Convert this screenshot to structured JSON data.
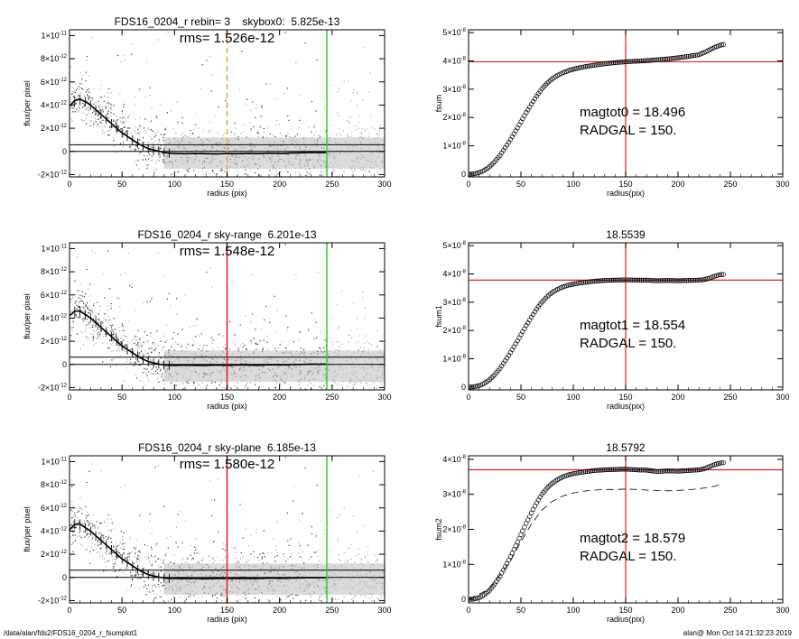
{
  "footer": {
    "left": "/data/alan/fds2/FDS16_0204_r_fsumplot1",
    "right": "alan@  Mon Oct 14 21:32:23 2019"
  },
  "colors": {
    "red": "#e02020",
    "green": "#2bd12b",
    "orange": "#f0a040",
    "scatter_dark": "#333333",
    "scatter_light": "#aaaaaa"
  },
  "chart_data": [
    {
      "type": "scatter",
      "panel": "profile-1",
      "title": "FDS16_0204_r rebin= 3    skybox0:  5.825e-13",
      "rms_label": "rms= 1.526e-12",
      "xlabel": "radius (pix)",
      "ylabel": "flux/per pixel",
      "xlim": [
        0,
        300
      ],
      "ylim": [
        -2.2e-12,
        1.05e-11
      ],
      "xticks": [
        "0",
        "50",
        "100",
        "150",
        "200",
        "250",
        "300"
      ],
      "yticks": [
        {
          "v": 1e-11,
          "m": "1×10",
          "e": "-11"
        },
        {
          "v": 8e-12,
          "m": "8×10",
          "e": "-12"
        },
        {
          "v": 6e-12,
          "m": "6×10",
          "e": "-12"
        },
        {
          "v": 4e-12,
          "m": "4×10",
          "e": "-12"
        },
        {
          "v": 2e-12,
          "m": "2×10",
          "e": "-12"
        },
        {
          "v": 0,
          "m": "0",
          "e": ""
        },
        {
          "v": -2e-12,
          "m": "-2×10",
          "e": "-12"
        }
      ],
      "vlines": [
        {
          "x": 150,
          "color": "#f0a040",
          "dash": true
        },
        {
          "x": 245,
          "color": "#2bd12b",
          "dash": false
        }
      ],
      "hlines": [
        0,
        5.8e-13
      ],
      "profile": {
        "x": [
          0,
          5,
          10,
          15,
          20,
          25,
          30,
          35,
          40,
          45,
          50,
          55,
          60,
          65,
          70,
          75,
          80,
          85,
          90,
          95,
          100,
          110,
          120,
          130,
          140,
          150,
          160,
          170,
          180,
          190,
          200,
          210,
          220,
          230,
          240,
          245
        ],
        "y": [
          3.9e-12,
          4.4e-12,
          4.5e-12,
          4.3e-12,
          4e-12,
          3.6e-12,
          3.2e-12,
          2.8e-12,
          2.4e-12,
          2e-12,
          1.6e-12,
          1.3e-12,
          1e-12,
          7e-13,
          4.5e-13,
          2.5e-13,
          1.2e-13,
          3e-14,
          -1e-13,
          -1.5e-13,
          -1.8e-13,
          -2e-13,
          -1.8e-13,
          -2e-13,
          -2.2e-13,
          -1.8e-13,
          -2e-13,
          -1.7e-13,
          -1.9e-13,
          -1.5e-13,
          -1.8e-13,
          -1.4e-13,
          -1.2e-13,
          -1e-13,
          -1.1e-13,
          -1e-13
        ]
      }
    },
    {
      "type": "line",
      "panel": "growth-1",
      "title": "",
      "xlabel": "radius(pix)",
      "ylabel": "fsum",
      "xlim": [
        0,
        300
      ],
      "ylim": [
        -1e-09,
        5.1e-08
      ],
      "xticks": [
        "0",
        "50",
        "100",
        "150",
        "200",
        "250",
        "300"
      ],
      "yticks": [
        {
          "v": 5e-08,
          "m": "5×10",
          "e": "-8"
        },
        {
          "v": 4e-08,
          "m": "4×10",
          "e": "-8"
        },
        {
          "v": 3e-08,
          "m": "3×10",
          "e": "-8"
        },
        {
          "v": 2e-08,
          "m": "2×10",
          "e": "-8"
        },
        {
          "v": 1e-08,
          "m": "1×10",
          "e": "-8"
        },
        {
          "v": 0,
          "m": "0",
          "e": ""
        }
      ],
      "vline": 150,
      "hline": 3.97e-08,
      "magtot_label": "magtot0 =  18.496",
      "radgal_label": "RADGAL =    150.",
      "growth_x": [
        0,
        5,
        10,
        15,
        20,
        25,
        30,
        35,
        40,
        45,
        50,
        55,
        60,
        65,
        70,
        75,
        80,
        85,
        90,
        95,
        100,
        110,
        120,
        130,
        140,
        150,
        160,
        170,
        180,
        190,
        200,
        210,
        220,
        225,
        230,
        235,
        240,
        245
      ],
      "growth_y": [
        0,
        1e-10,
        5e-10,
        1.3e-09,
        2.6e-09,
        4.4e-09,
        6.6e-09,
        9.3e-09,
        1.22e-08,
        1.53e-08,
        1.85e-08,
        2.17e-08,
        2.47e-08,
        2.76e-08,
        3.01e-08,
        3.21e-08,
        3.37e-08,
        3.49e-08,
        3.58e-08,
        3.65e-08,
        3.71e-08,
        3.79e-08,
        3.85e-08,
        3.9e-08,
        3.94e-08,
        3.97e-08,
        3.99e-08,
        4.01e-08,
        4.04e-08,
        4.07e-08,
        4.11e-08,
        4.16e-08,
        4.22e-08,
        4.3e-08,
        4.39e-08,
        4.48e-08,
        4.55e-08,
        4.6e-08
      ],
      "dashed_x": [],
      "dashed_y": []
    },
    {
      "type": "scatter",
      "panel": "profile-2",
      "title": "FDS16_0204_r sky-range  6.201e-13",
      "rms_label": "rms= 1.548e-12",
      "xlabel": "radius (pix)",
      "ylabel": "flux/per pixel",
      "xlim": [
        0,
        300
      ],
      "ylim": [
        -2.2e-12,
        1.05e-11
      ],
      "xticks": [
        "0",
        "50",
        "100",
        "150",
        "200",
        "250",
        "300"
      ],
      "yticks": [
        {
          "v": 1e-11,
          "m": "1×10",
          "e": "-11"
        },
        {
          "v": 8e-12,
          "m": "8×10",
          "e": "-12"
        },
        {
          "v": 6e-12,
          "m": "6×10",
          "e": "-12"
        },
        {
          "v": 4e-12,
          "m": "4×10",
          "e": "-12"
        },
        {
          "v": 2e-12,
          "m": "2×10",
          "e": "-12"
        },
        {
          "v": 0,
          "m": "0",
          "e": ""
        },
        {
          "v": -2e-12,
          "m": "-2×10",
          "e": "-12"
        }
      ],
      "vlines": [
        {
          "x": 150,
          "color": "#e02020",
          "dash": false
        },
        {
          "x": 245,
          "color": "#2bd12b",
          "dash": false
        }
      ],
      "hlines": [
        0,
        6.2e-13
      ],
      "profile": {
        "x": [
          0,
          5,
          10,
          15,
          20,
          25,
          30,
          35,
          40,
          45,
          50,
          55,
          60,
          65,
          70,
          75,
          80,
          85,
          90,
          95,
          100,
          110,
          120,
          130,
          140,
          150,
          160,
          170,
          180,
          190,
          200,
          210,
          220,
          230,
          240,
          245
        ],
        "y": [
          4.2e-12,
          4.6e-12,
          4.6e-12,
          4.3e-12,
          4e-12,
          3.6e-12,
          3.2e-12,
          2.8e-12,
          2.4e-12,
          2e-12,
          1.6e-12,
          1.3e-12,
          1e-12,
          7e-13,
          4.5e-13,
          2.5e-13,
          1.2e-13,
          3e-14,
          -5e-14,
          -8e-14,
          -1e-13,
          -5e-14,
          -8e-14,
          -1e-13,
          -5e-14,
          -8e-14,
          -6e-14,
          -5e-14,
          -8e-14,
          -3e-14,
          -5e-14,
          -2e-14,
          0,
          3e-14,
          2e-14,
          3e-14
        ]
      }
    },
    {
      "type": "line",
      "panel": "growth-2",
      "title": "18.5539",
      "xlabel": "radius(pix)",
      "ylabel": "fsum1",
      "xlim": [
        0,
        300
      ],
      "ylim": [
        -1e-09,
        5.1e-08
      ],
      "xticks": [
        "0",
        "50",
        "100",
        "150",
        "200",
        "250",
        "300"
      ],
      "yticks": [
        {
          "v": 5e-08,
          "m": "5×10",
          "e": "-8"
        },
        {
          "v": 4e-08,
          "m": "4×10",
          "e": "-8"
        },
        {
          "v": 3e-08,
          "m": "3×10",
          "e": "-8"
        },
        {
          "v": 2e-08,
          "m": "2×10",
          "e": "-8"
        },
        {
          "v": 1e-08,
          "m": "1×10",
          "e": "-8"
        },
        {
          "v": 0,
          "m": "0",
          "e": ""
        }
      ],
      "vline": 150,
      "hline": 3.78e-08,
      "magtot_label": "magtot1 =  18.554",
      "radgal_label": "RADGAL =    150.",
      "growth_x": [
        0,
        5,
        10,
        15,
        20,
        25,
        30,
        35,
        40,
        45,
        50,
        55,
        60,
        65,
        70,
        75,
        80,
        85,
        90,
        95,
        100,
        110,
        120,
        130,
        140,
        150,
        160,
        170,
        180,
        190,
        200,
        210,
        220,
        225,
        230,
        235,
        240,
        245
      ],
      "growth_y": [
        0,
        1e-10,
        5e-10,
        1.3e-09,
        2.6e-09,
        4.4e-09,
        6.6e-09,
        9.3e-09,
        1.22e-08,
        1.53e-08,
        1.85e-08,
        2.17e-08,
        2.47e-08,
        2.76e-08,
        3e-08,
        3.2e-08,
        3.35e-08,
        3.46e-08,
        3.54e-08,
        3.6e-08,
        3.64e-08,
        3.7e-08,
        3.74e-08,
        3.77e-08,
        3.78e-08,
        3.79e-08,
        3.78e-08,
        3.78e-08,
        3.76e-08,
        3.77e-08,
        3.76e-08,
        3.77e-08,
        3.78e-08,
        3.8e-08,
        3.85e-08,
        3.92e-08,
        3.97e-08,
        3.99e-08
      ],
      "dashed_x": [],
      "dashed_y": []
    },
    {
      "type": "scatter",
      "panel": "profile-3",
      "title": "FDS16_0204_r sky-plane  6.185e-13",
      "rms_label": "rms= 1.580e-12",
      "xlabel": "radius (pix)",
      "ylabel": "flux/per pixel",
      "xlim": [
        0,
        300
      ],
      "ylim": [
        -2.2e-12,
        1.05e-11
      ],
      "xticks": [
        "0",
        "50",
        "100",
        "150",
        "200",
        "250",
        "300"
      ],
      "yticks": [
        {
          "v": 1e-11,
          "m": "1×10",
          "e": "-11"
        },
        {
          "v": 8e-12,
          "m": "8×10",
          "e": "-12"
        },
        {
          "v": 6e-12,
          "m": "6×10",
          "e": "-12"
        },
        {
          "v": 4e-12,
          "m": "4×10",
          "e": "-12"
        },
        {
          "v": 2e-12,
          "m": "2×10",
          "e": "-12"
        },
        {
          "v": 0,
          "m": "0",
          "e": ""
        },
        {
          "v": -2e-12,
          "m": "-2×10",
          "e": "-12"
        }
      ],
      "vlines": [
        {
          "x": 150,
          "color": "#e02020",
          "dash": false
        },
        {
          "x": 245,
          "color": "#2bd12b",
          "dash": false
        }
      ],
      "hlines": [
        0,
        6.2e-13
      ],
      "profile": {
        "x": [
          0,
          5,
          10,
          15,
          20,
          25,
          30,
          35,
          40,
          45,
          50,
          55,
          60,
          65,
          70,
          75,
          80,
          85,
          90,
          95,
          100,
          110,
          120,
          130,
          140,
          150,
          160,
          170,
          180,
          190,
          200,
          210,
          220,
          230,
          240,
          245
        ],
        "y": [
          4.1e-12,
          4.6e-12,
          4.6e-12,
          4.3e-12,
          4e-12,
          3.6e-12,
          3.2e-12,
          2.8e-12,
          2.4e-12,
          2e-12,
          1.6e-12,
          1.3e-12,
          1e-12,
          7e-13,
          4.5e-13,
          2.5e-13,
          1.2e-13,
          3e-14,
          -5e-14,
          -1e-13,
          -1e-13,
          -8e-14,
          -1e-13,
          -1.2e-13,
          -8e-14,
          -1e-13,
          -9e-14,
          -8e-14,
          -1e-13,
          -6e-14,
          -8e-14,
          -5e-14,
          -4e-14,
          -2e-14,
          -3e-14,
          -2e-14
        ]
      }
    },
    {
      "type": "line",
      "panel": "growth-3",
      "title": "18.5792",
      "xlabel": "radius(pix)",
      "ylabel": "fsum2",
      "xlim": [
        0,
        300
      ],
      "ylim": [
        -1e-09,
        4.1e-08
      ],
      "xticks": [
        "0",
        "50",
        "100",
        "150",
        "200",
        "250",
        "300"
      ],
      "yticks": [
        {
          "v": 4e-08,
          "m": "4×10",
          "e": "-8"
        },
        {
          "v": 3e-08,
          "m": "3×10",
          "e": "-8"
        },
        {
          "v": 2e-08,
          "m": "2×10",
          "e": "-8"
        },
        {
          "v": 1e-08,
          "m": "1×10",
          "e": "-8"
        },
        {
          "v": 0,
          "m": "0",
          "e": ""
        }
      ],
      "vline": 150,
      "hline": 3.7e-08,
      "magtot_label": "magtot2 =  18.579",
      "radgal_label": "RADGAL =    150.",
      "growth_x": [
        0,
        5,
        10,
        15,
        20,
        25,
        30,
        35,
        40,
        45,
        50,
        55,
        60,
        65,
        70,
        75,
        80,
        85,
        90,
        95,
        100,
        110,
        120,
        130,
        140,
        150,
        160,
        170,
        180,
        190,
        200,
        210,
        220,
        225,
        230,
        235,
        240,
        245
      ],
      "growth_y": [
        0,
        1e-10,
        5e-10,
        1.3e-09,
        2.6e-09,
        4.4e-09,
        6.6e-09,
        9.3e-09,
        1.22e-08,
        1.53e-08,
        1.85e-08,
        2.17e-08,
        2.47e-08,
        2.76e-08,
        3e-08,
        3.18e-08,
        3.32e-08,
        3.42e-08,
        3.5e-08,
        3.55e-08,
        3.59e-08,
        3.64e-08,
        3.68e-08,
        3.7e-08,
        3.71e-08,
        3.72e-08,
        3.7e-08,
        3.69e-08,
        3.65e-08,
        3.67e-08,
        3.66e-08,
        3.68e-08,
        3.7e-08,
        3.73e-08,
        3.79e-08,
        3.85e-08,
        3.89e-08,
        3.91e-08
      ],
      "dashed_x": [
        0,
        20,
        40,
        50,
        60,
        70,
        80,
        90,
        100,
        110,
        120,
        130,
        140,
        150,
        160,
        170,
        180,
        190,
        200,
        210,
        220,
        230,
        240
      ],
      "dashed_y": [
        0,
        3e-09,
        1.1e-08,
        1.65e-08,
        2.15e-08,
        2.55e-08,
        2.8e-08,
        2.95e-08,
        3.04e-08,
        3.09e-08,
        3.12e-08,
        3.14e-08,
        3.14e-08,
        3.15e-08,
        3.14e-08,
        3.12e-08,
        3.11e-08,
        3.1e-08,
        3.11e-08,
        3.13e-08,
        3.16e-08,
        3.2e-08,
        3.27e-08
      ]
    }
  ]
}
